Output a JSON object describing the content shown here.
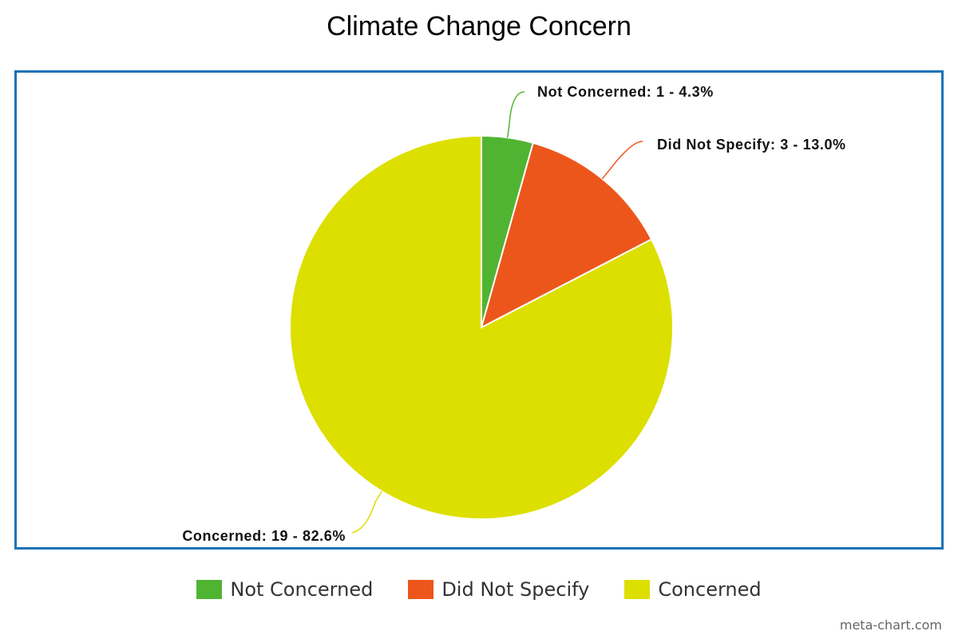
{
  "chart_data": {
    "type": "pie",
    "title": "Climate Change Concern",
    "slices": [
      {
        "name": "Not Concerned",
        "value": 1,
        "percent": 4.3,
        "color": "#50b432",
        "label": "Not Concerned: 1 - 4.3%"
      },
      {
        "name": "Did Not Specify",
        "value": 3,
        "percent": 13.0,
        "color": "#ed561b",
        "label": "Did Not Specify: 3 - 13.0%"
      },
      {
        "name": "Concerned",
        "value": 19,
        "percent": 82.6,
        "color": "#dddf00",
        "label": "Concerned: 19 - 82.6%"
      }
    ],
    "legend_placement": "bottom-center",
    "frame_color": "#1a73b8"
  },
  "watermark": "meta-chart.com"
}
